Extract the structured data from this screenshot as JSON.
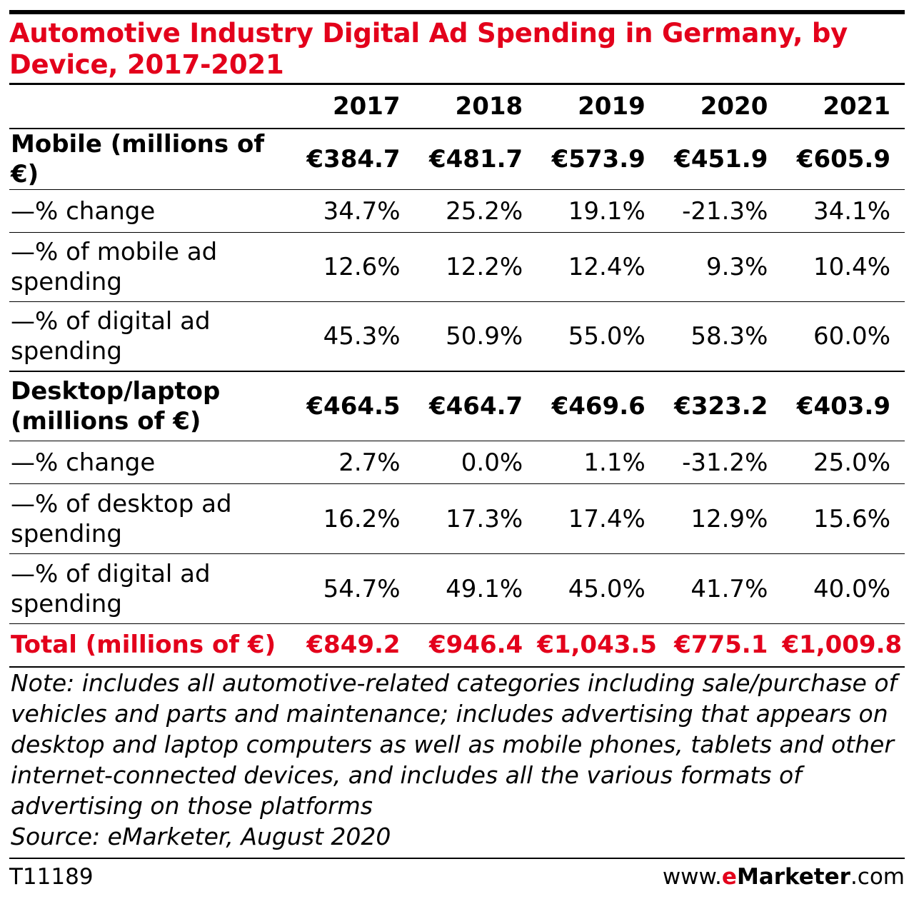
{
  "title": "Automotive Industry Digital Ad Spending in Germany, by Device, 2017-2021",
  "note": "Note: includes all automotive-related categories including sale/purchase of vehicles and parts and maintenance; includes advertising that appears on desktop and laptop computers as well as mobile phones, tablets and other internet-connected devices, and includes all the various formats of advertising on those platforms",
  "source": "Source: eMarketer, August 2020",
  "footer": {
    "id": "T11189",
    "brand_prefix": "www.",
    "brand_e": "e",
    "brand_name": "Marketer",
    "brand_suffix": ".com"
  },
  "colors": {
    "accent": "#e3001b",
    "text": "#000000"
  },
  "chart_data": {
    "type": "table",
    "title": "Automotive Industry Digital Ad Spending in Germany, by Device, 2017-2021",
    "columns": [
      "",
      "2017",
      "2018",
      "2019",
      "2020",
      "2021"
    ],
    "rows": [
      {
        "label": "Mobile (millions of €)",
        "style": "main",
        "values": [
          "€384.7",
          "€481.7",
          "€573.9",
          "€451.9",
          "€605.9"
        ]
      },
      {
        "label": "—% change",
        "style": "sub",
        "values": [
          "34.7%",
          "25.2%",
          "19.1%",
          "-21.3%",
          "34.1%"
        ]
      },
      {
        "label": "—% of mobile ad spending",
        "style": "sub",
        "values": [
          "12.6%",
          "12.2%",
          "12.4%",
          "9.3%",
          "10.4%"
        ]
      },
      {
        "label": "—% of digital ad spending",
        "style": "sub-end",
        "values": [
          "45.3%",
          "50.9%",
          "55.0%",
          "58.3%",
          "60.0%"
        ]
      },
      {
        "label": "Desktop/laptop (millions of €)",
        "style": "main",
        "values": [
          "€464.5",
          "€464.7",
          "€469.6",
          "€323.2",
          "€403.9"
        ]
      },
      {
        "label": "—% change",
        "style": "sub",
        "values": [
          "2.7%",
          "0.0%",
          "1.1%",
          "-31.2%",
          "25.0%"
        ]
      },
      {
        "label": "—% of desktop ad spending",
        "style": "sub",
        "values": [
          "16.2%",
          "17.3%",
          "17.4%",
          "12.9%",
          "15.6%"
        ]
      },
      {
        "label": "—% of digital ad spending",
        "style": "sub",
        "values": [
          "54.7%",
          "49.1%",
          "45.0%",
          "41.7%",
          "40.0%"
        ]
      },
      {
        "label": "Total (millions of €)",
        "style": "total",
        "values": [
          "€849.2",
          "€946.4",
          "€1,043.5",
          "€775.1",
          "€1,009.8"
        ]
      }
    ]
  }
}
